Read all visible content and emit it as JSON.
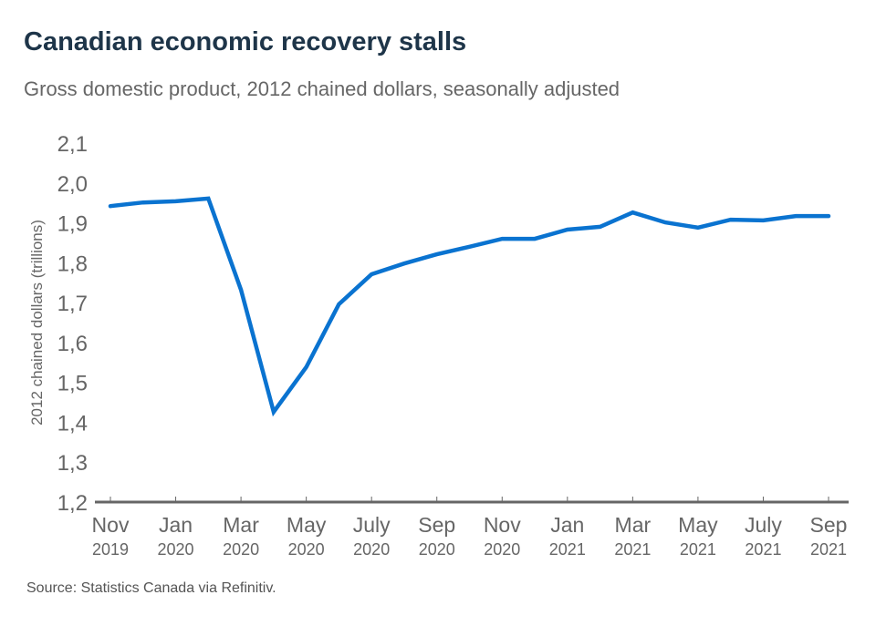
{
  "header": {
    "title": "Canadian economic recovery stalls",
    "subtitle": "Gross domestic product, 2012 chained dollars, seasonally adjusted"
  },
  "footer": {
    "source": "Source: Statistics Canada via Refinitiv."
  },
  "colors": {
    "line": "#0a73d0",
    "axis": "#666666",
    "title": "#1e3549"
  },
  "chart_data": {
    "type": "line",
    "title": "Canadian economic recovery stalls",
    "subtitle": "Gross domestic product, 2012 chained dollars, seasonally adjusted",
    "xlabel": "",
    "ylabel": "2012 chained dollars (trillions)",
    "ylim": [
      1.2,
      2.1
    ],
    "yticks": [
      "1,2",
      "1,3",
      "1,4",
      "1,5",
      "1,6",
      "1,7",
      "1,8",
      "1,9",
      "2,0",
      "2,1"
    ],
    "ytick_values": [
      1.2,
      1.3,
      1.4,
      1.5,
      1.6,
      1.7,
      1.8,
      1.9,
      2.0,
      2.1
    ],
    "grid": false,
    "x": [
      "Nov 2019",
      "Dec 2019",
      "Jan 2020",
      "Feb 2020",
      "Mar 2020",
      "Apr 2020",
      "May 2020",
      "Jun 2020",
      "Jul 2020",
      "Aug 2020",
      "Sep 2020",
      "Oct 2020",
      "Nov 2020",
      "Dec 2020",
      "Jan 2021",
      "Feb 2021",
      "Mar 2021",
      "Apr 2021",
      "May 2021",
      "Jun 2021",
      "Jul 2021",
      "Aug 2021",
      "Sep 2021"
    ],
    "xticks": [
      {
        "index": 0,
        "month": "Nov",
        "year": "2019"
      },
      {
        "index": 2,
        "month": "Jan",
        "year": "2020"
      },
      {
        "index": 4,
        "month": "Mar",
        "year": "2020"
      },
      {
        "index": 6,
        "month": "May",
        "year": "2020"
      },
      {
        "index": 8,
        "month": "July",
        "year": "2020"
      },
      {
        "index": 10,
        "month": "Sep",
        "year": "2020"
      },
      {
        "index": 12,
        "month": "Nov",
        "year": "2020"
      },
      {
        "index": 14,
        "month": "Jan",
        "year": "2021"
      },
      {
        "index": 16,
        "month": "Mar",
        "year": "2021"
      },
      {
        "index": 18,
        "month": "May",
        "year": "2021"
      },
      {
        "index": 20,
        "month": "July",
        "year": "2021"
      },
      {
        "index": 22,
        "month": "Sep",
        "year": "2021"
      }
    ],
    "series": [
      {
        "name": "GDP",
        "values": [
          1.942,
          1.951,
          1.954,
          1.961,
          1.732,
          1.426,
          1.538,
          1.696,
          1.771,
          1.798,
          1.821,
          1.84,
          1.86,
          1.86,
          1.883,
          1.89,
          1.926,
          1.901,
          1.888,
          1.908,
          1.906,
          1.917,
          1.917
        ]
      }
    ]
  }
}
